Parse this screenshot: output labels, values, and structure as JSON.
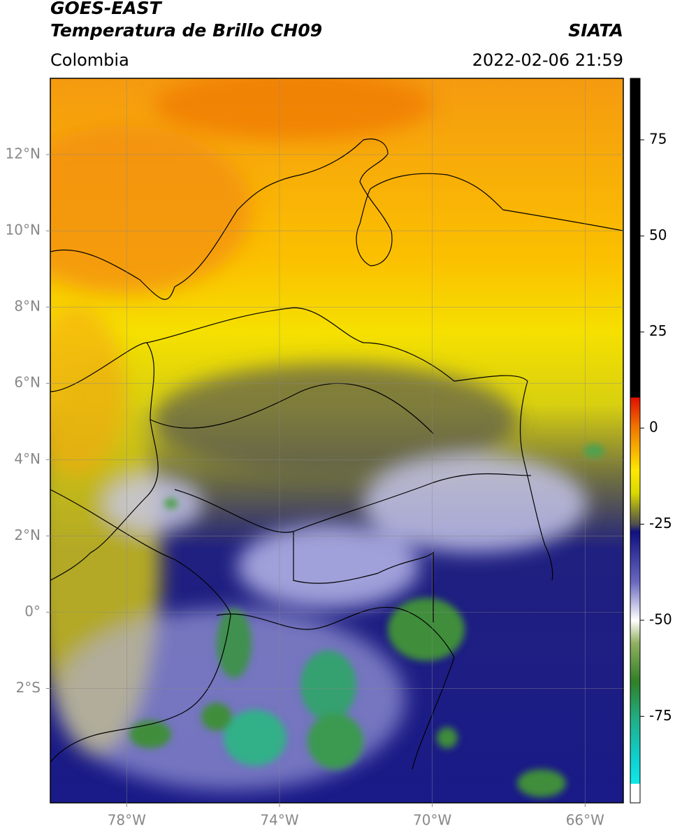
{
  "header": {
    "satellite": "GOES-EAST",
    "product": "Temperatura de Brillo CH09",
    "source": "SIATA",
    "region": "Colombia",
    "datetime": "2022-02-06 21:59"
  },
  "map": {
    "xlim": [
      -80,
      -65
    ],
    "ylim": [
      -5,
      14
    ],
    "xticks": [
      {
        "value": -78,
        "label": "78°W"
      },
      {
        "value": -74,
        "label": "74°W"
      },
      {
        "value": -70,
        "label": "70°W"
      },
      {
        "value": -66,
        "label": "66°W"
      }
    ],
    "yticks": [
      {
        "value": 12,
        "label": "12°N"
      },
      {
        "value": 10,
        "label": "10°N"
      },
      {
        "value": 8,
        "label": "8°N"
      },
      {
        "value": 6,
        "label": "6°N"
      },
      {
        "value": 4,
        "label": "4°N"
      },
      {
        "value": 2,
        "label": "2°N"
      },
      {
        "value": 0,
        "label": "0°"
      },
      {
        "value": -2,
        "label": "2°S"
      }
    ],
    "grid": true
  },
  "colorbar": {
    "lim": [
      -97.5,
      91
    ],
    "ticks": [
      75,
      50,
      25,
      0,
      -25,
      -50,
      -75
    ],
    "colormap": [
      {
        "value": 91,
        "color": "#000000"
      },
      {
        "value": 8,
        "color": "#000000"
      },
      {
        "value": 7.9,
        "color": "#e01000"
      },
      {
        "value": 0,
        "color": "#f07800"
      },
      {
        "value": -11,
        "color": "#ffe800"
      },
      {
        "value": -17,
        "color": "#d8d800"
      },
      {
        "value": -22,
        "color": "#808030"
      },
      {
        "value": -25,
        "color": "#505050"
      },
      {
        "value": -27,
        "color": "#101080"
      },
      {
        "value": -40,
        "color": "#6868c0"
      },
      {
        "value": -50,
        "color": "#ffffff"
      },
      {
        "value": -56,
        "color": "#90b060"
      },
      {
        "value": -66,
        "color": "#308028"
      },
      {
        "value": -76,
        "color": "#20b088"
      },
      {
        "value": -86,
        "color": "#10d0d0"
      },
      {
        "value": -92.5,
        "color": "#10e8e8"
      },
      {
        "value": -92.6,
        "color": "#ffffff"
      },
      {
        "value": -97.5,
        "color": "#ffffff"
      }
    ]
  }
}
